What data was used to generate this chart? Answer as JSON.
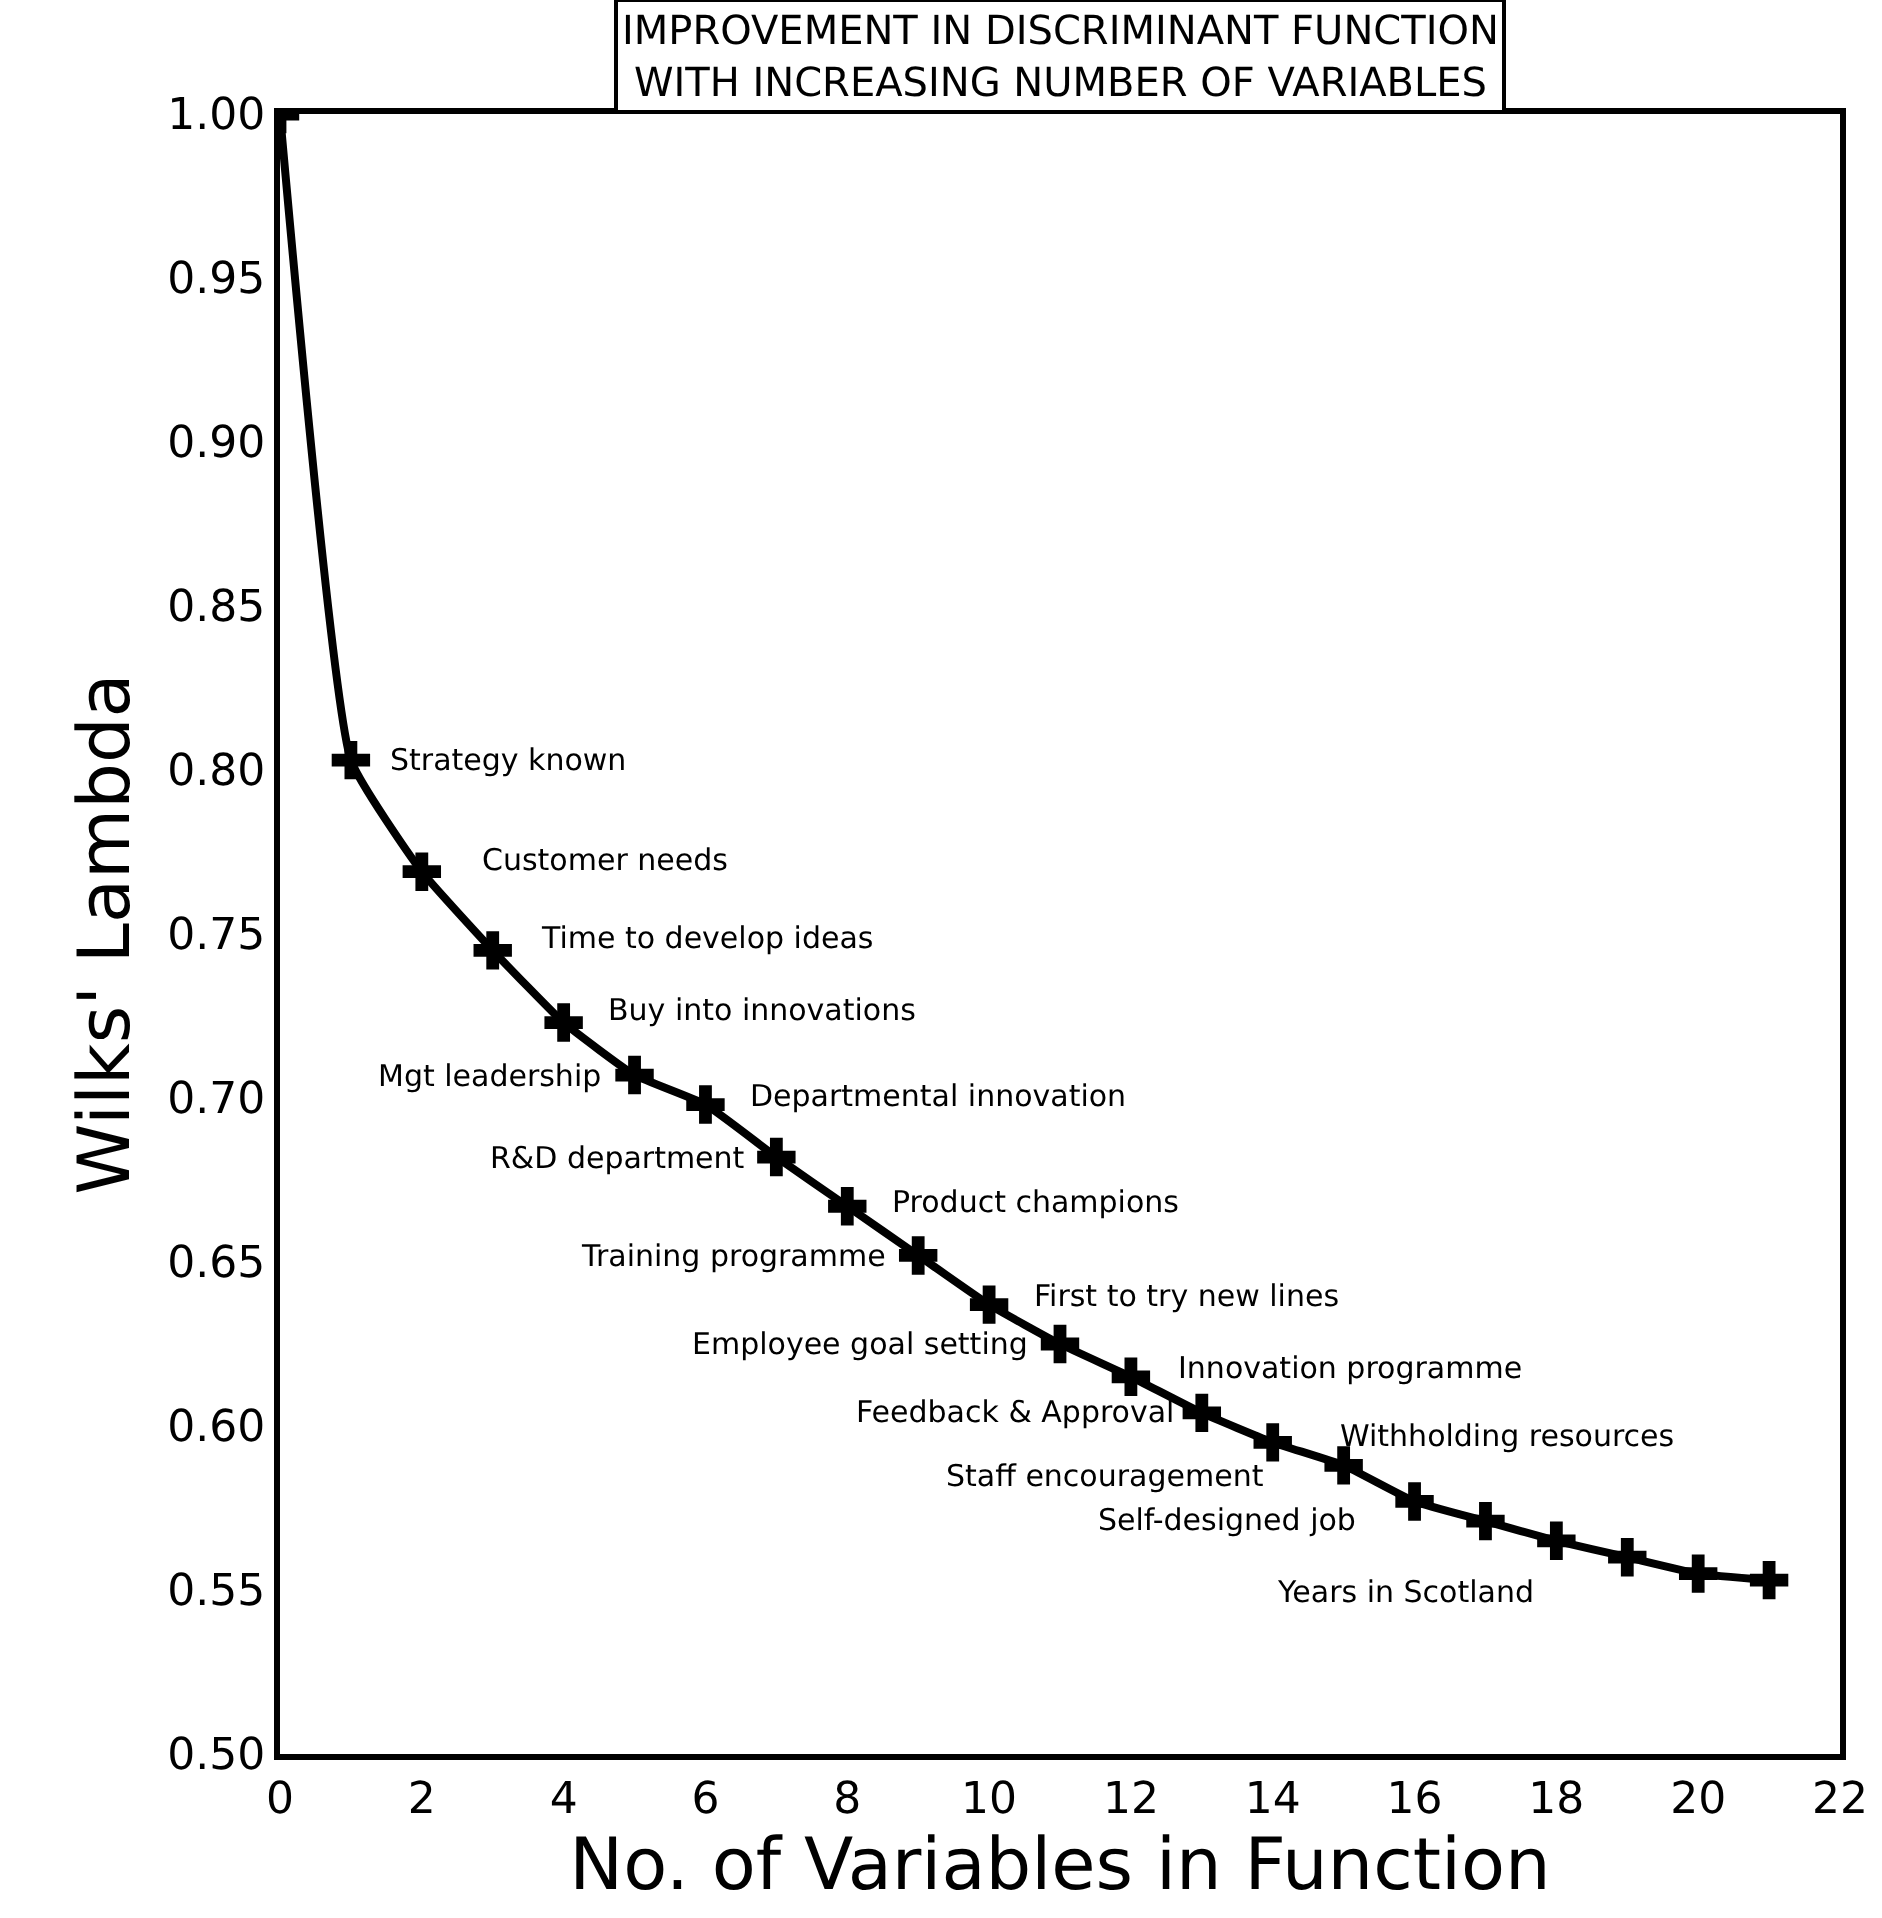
{
  "chart_data": {
    "type": "line",
    "title": "IMPROVEMENT IN DISCRIMINANT FUNCTION\nWITH INCREASING NUMBER OF VARIABLES",
    "xlabel": "No. of Variables in Function",
    "ylabel": "Wilks' Lambda",
    "x": [
      0,
      1,
      2,
      3,
      4,
      5,
      6,
      7,
      8,
      9,
      10,
      11,
      12,
      13,
      14,
      15,
      16,
      17,
      18,
      19,
      20,
      21
    ],
    "series": [
      {
        "color": "#000000",
        "values": [
          1.0,
          0.803,
          0.769,
          0.745,
          0.723,
          0.707,
          0.698,
          0.682,
          0.667,
          0.652,
          0.637,
          0.625,
          0.615,
          0.604,
          0.595,
          0.588,
          0.577,
          0.571,
          0.565,
          0.56,
          0.555,
          0.553
        ]
      }
    ],
    "marker": "cross",
    "line_style": "solid",
    "grid": false,
    "xlim": [
      0,
      22
    ],
    "xticks": [
      0,
      2,
      4,
      6,
      8,
      10,
      12,
      14,
      16,
      18,
      20,
      22
    ],
    "ylim": [
      0.5,
      1.0
    ],
    "yticks": [
      {
        "value": 0.5,
        "label": "0.50"
      },
      {
        "value": 0.55,
        "label": "0.55"
      },
      {
        "value": 0.6,
        "label": "0.60"
      },
      {
        "value": 0.65,
        "label": "0.65"
      },
      {
        "value": 0.7,
        "label": "0.70"
      },
      {
        "value": 0.75,
        "label": "0.75"
      },
      {
        "value": 0.8,
        "label": "0.80"
      },
      {
        "value": 0.85,
        "label": "0.85"
      },
      {
        "value": 0.9,
        "label": "0.90"
      },
      {
        "value": 0.95,
        "label": "0.95"
      },
      {
        "value": 1.0,
        "label": "1.00"
      }
    ],
    "annotations": [
      {
        "text": "Strategy known",
        "x": 1,
        "y": 0.803
      },
      {
        "text": "Customer needs",
        "x": 2,
        "y": 0.769
      },
      {
        "text": "Time to develop ideas",
        "x": 3,
        "y": 0.745
      },
      {
        "text": "Buy into innovations",
        "x": 4,
        "y": 0.723
      },
      {
        "text": "Mgt leadership",
        "x": 5,
        "y": 0.707
      },
      {
        "text": "Departmental innovation",
        "x": 6,
        "y": 0.698
      },
      {
        "text": "R&D department",
        "x": 7,
        "y": 0.682
      },
      {
        "text": "Product champions",
        "x": 8,
        "y": 0.667
      },
      {
        "text": "Training programme",
        "x": 9,
        "y": 0.652
      },
      {
        "text": "First to try new lines",
        "x": 10,
        "y": 0.637
      },
      {
        "text": "Employee goal setting",
        "x": 11,
        "y": 0.625
      },
      {
        "text": "Innovation programme",
        "x": 12,
        "y": 0.615
      },
      {
        "text": "Feedback & Approval",
        "x": 13,
        "y": 0.604
      },
      {
        "text": "Staff encouragement",
        "x": 14,
        "y": 0.595
      },
      {
        "text": "Withholding resources",
        "x": 15,
        "y": 0.588
      },
      {
        "text": "Self-designed job",
        "x": 16,
        "y": 0.577
      },
      {
        "text": "Years in Scotland",
        "x": 17,
        "y": 0.571
      }
    ]
  }
}
